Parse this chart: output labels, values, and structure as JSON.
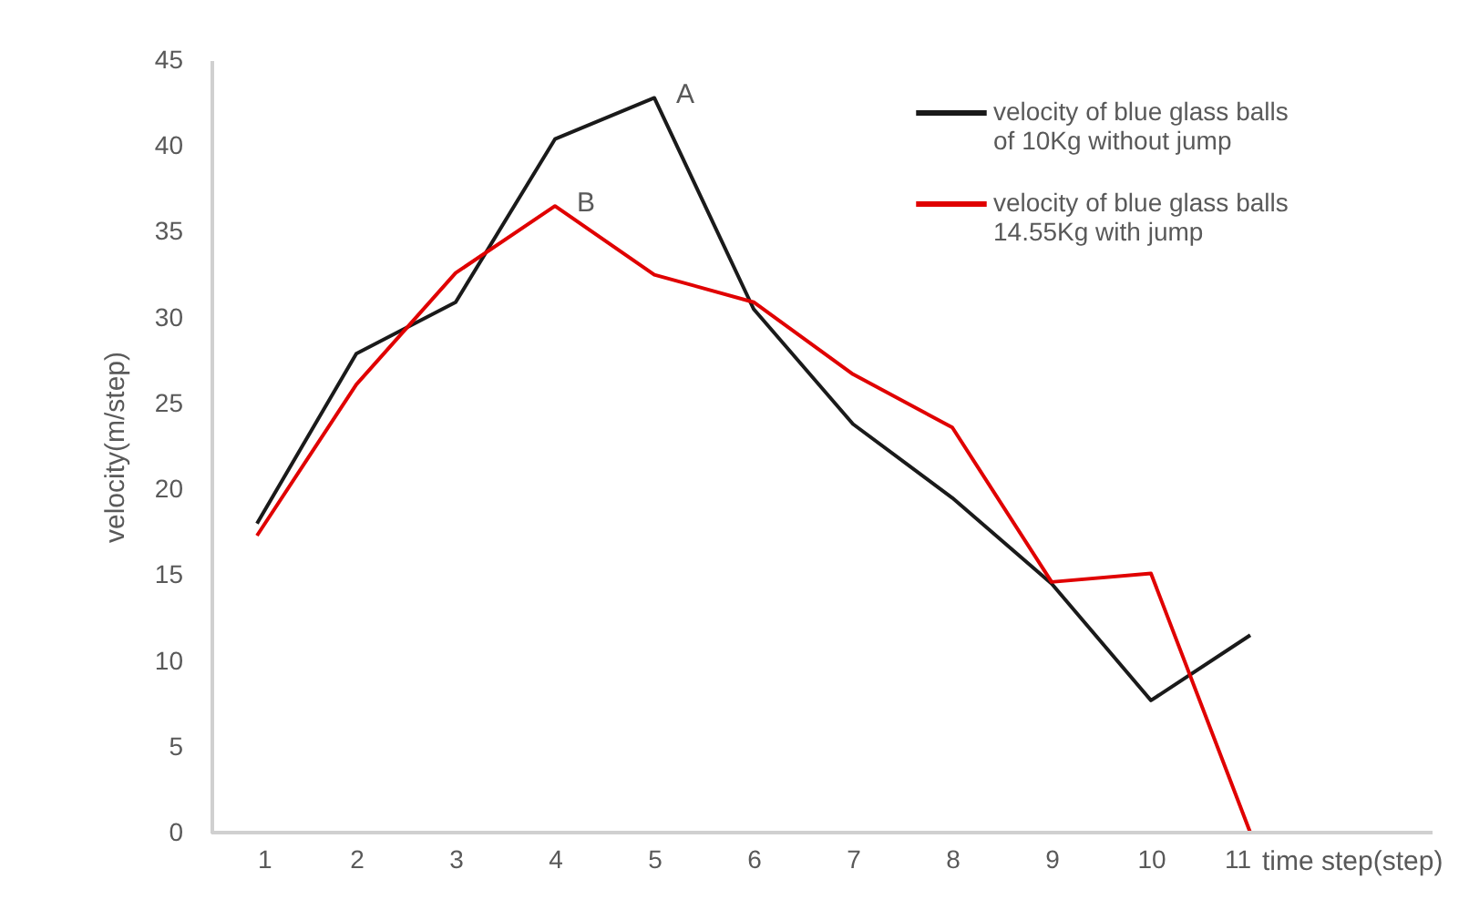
{
  "chart_data": {
    "type": "line",
    "xlabel": "time step(step)",
    "ylabel": "velocity(m/step)",
    "categories": [
      "1",
      "2",
      "3",
      "4",
      "5",
      "6",
      "7",
      "8",
      "9",
      "10",
      "11"
    ],
    "series": [
      {
        "name": "velocity of blue glass balls of 10Kg without jump",
        "color": "#1a1a1a",
        "values": [
          18,
          27.9,
          30.9,
          40.4,
          42.8,
          30.5,
          23.8,
          19.5,
          14.5,
          7.7,
          11.5
        ]
      },
      {
        "name": "velocity of blue glass balls 14.55Kg with jump",
        "color": "#e00000",
        "values": [
          17.3,
          26.1,
          32.6,
          36.5,
          32.5,
          30.9,
          26.7,
          23.6,
          14.6,
          15.1,
          0
        ]
      }
    ],
    "ylim": [
      0,
      45
    ],
    "yticks": [
      0,
      5,
      10,
      15,
      20,
      25,
      30,
      35,
      40,
      45
    ],
    "annotations": [
      {
        "text": "A",
        "x": "5",
        "y": 42.8
      },
      {
        "text": "B",
        "x": "4",
        "y": 36.5
      }
    ],
    "grid": false,
    "legend": "top right",
    "marker": "none",
    "line_style": "solid"
  }
}
